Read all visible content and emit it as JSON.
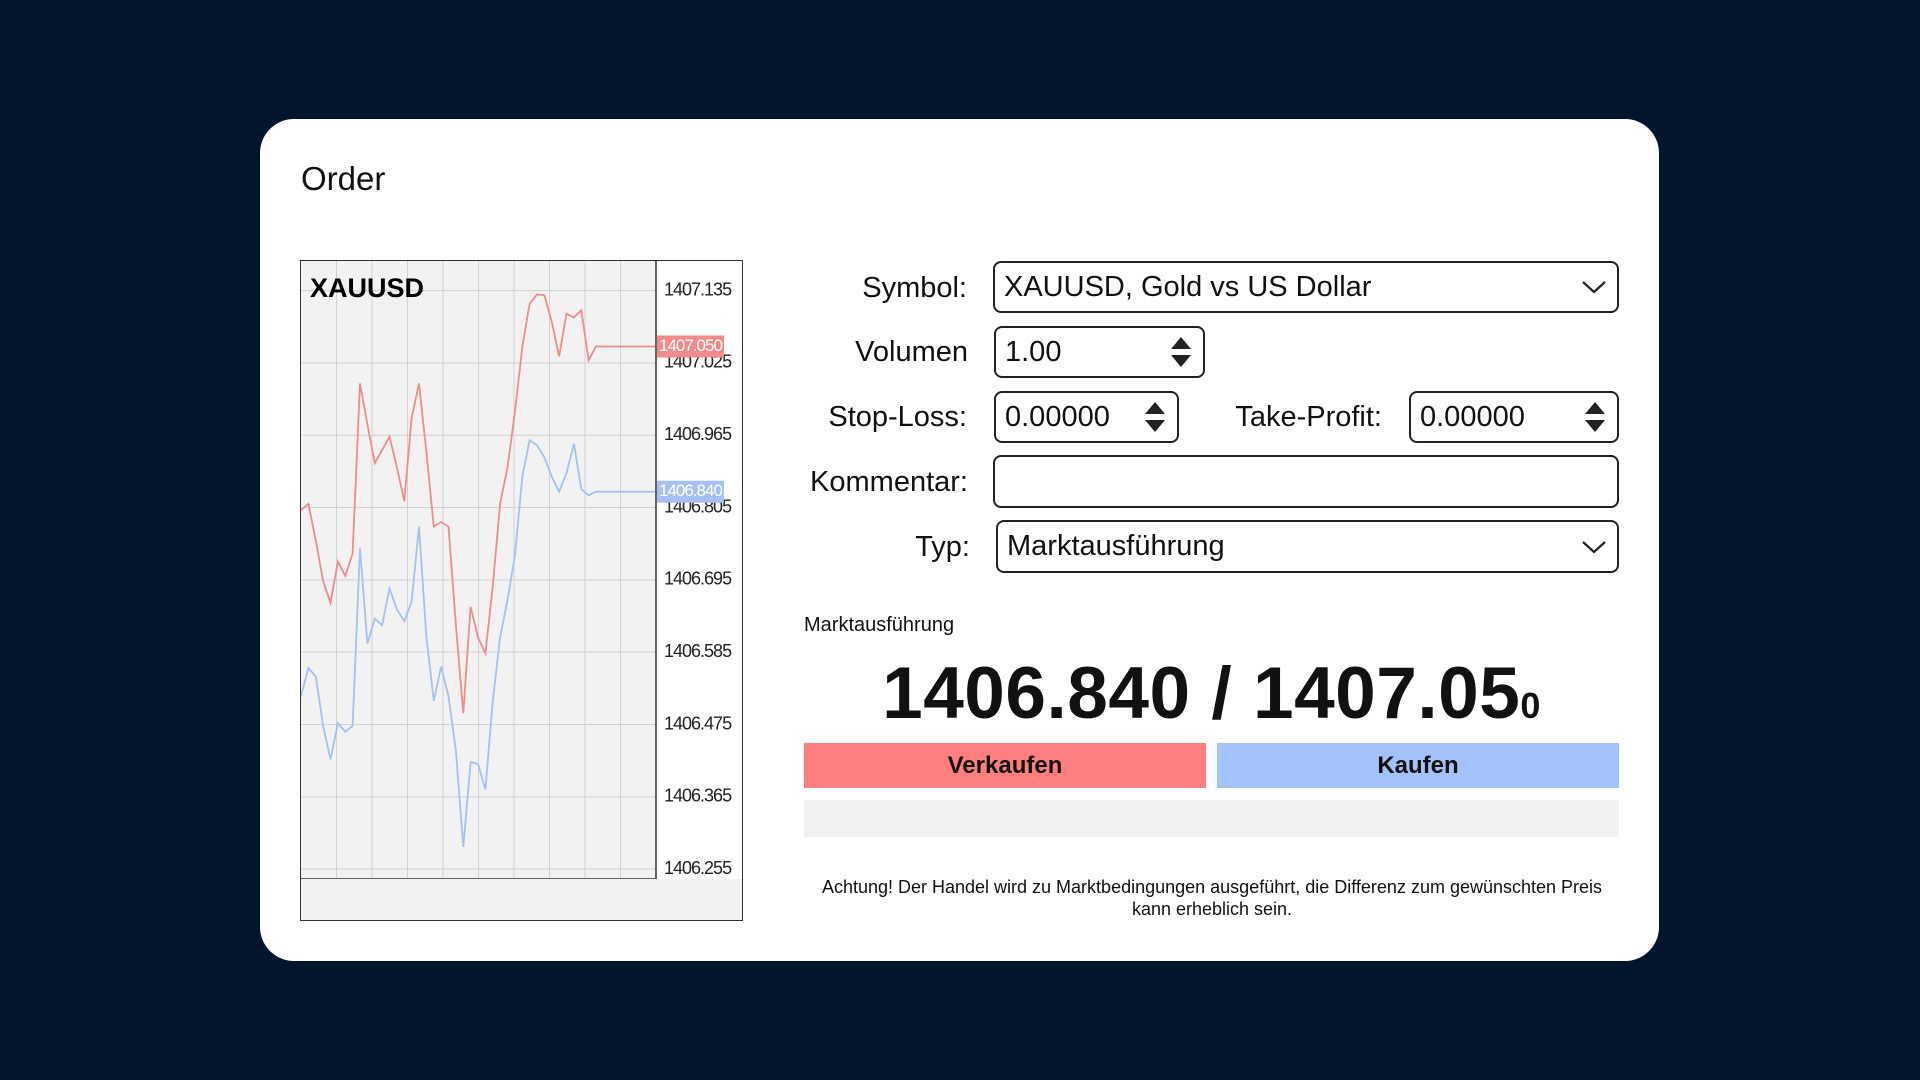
{
  "title": "Order",
  "chart_data": {
    "type": "line",
    "title": "XAUUSD",
    "ylim": [
      1406.24,
      1407.18
    ],
    "yticks": [
      1406.255,
      1406.365,
      1406.475,
      1406.585,
      1406.695,
      1406.805,
      1406.965,
      1407.025,
      1407.135
    ],
    "grid": true,
    "series": [
      {
        "color": "#f28b8b",
        "values": [
          1406.801,
          1406.813,
          1406.755,
          1406.693,
          1406.66,
          1406.723,
          1406.701,
          1406.735,
          1407.008,
          1406.974,
          1406.903,
          1406.932,
          1406.962,
          1406.894,
          1406.819,
          1406.979,
          1407.008,
          1406.927,
          1406.776,
          1406.783,
          1406.776,
          1406.626,
          1406.492,
          1406.654,
          1406.608,
          1406.583,
          1406.686,
          1406.813,
          1406.894,
          1406.984,
          1407.049,
          1407.115,
          1407.129,
          1407.128,
          1407.087,
          1407.035,
          1407.1,
          1407.094,
          1407.105,
          1407.029,
          1407.05,
          1407.05,
          1407.05,
          1407.05,
          1407.05,
          1407.05,
          1407.05,
          1407.05,
          1407.05
        ],
        "value_labels": [
          null,
          null,
          null,
          null,
          null,
          null,
          null,
          null,
          null,
          null,
          null,
          null,
          null,
          null,
          null,
          null,
          null,
          null,
          null,
          null,
          null,
          null,
          null,
          null,
          null,
          null,
          null,
          null,
          null,
          null,
          null,
          null,
          null,
          null,
          null,
          null,
          null,
          null,
          null,
          null,
          null,
          null,
          null,
          null,
          null,
          null,
          null,
          null,
          "1407.050"
        ]
      },
      {
        "color": "#a6bff5",
        "values": [
          1406.518,
          1406.561,
          1406.548,
          1406.473,
          1406.422,
          1406.477,
          1406.464,
          1406.473,
          1406.743,
          1406.598,
          1406.636,
          1406.626,
          1406.682,
          1406.65,
          1406.632,
          1406.662,
          1406.776,
          1406.608,
          1406.511,
          1406.563,
          1406.518,
          1406.435,
          1406.289,
          1406.418,
          1406.415,
          1406.376,
          1406.511,
          1406.608,
          1406.664,
          1406.732,
          1406.873,
          1406.954,
          1406.943,
          1406.916,
          1406.873,
          1406.84,
          1406.881,
          1406.946,
          1406.846,
          1406.832,
          1406.84,
          1406.84,
          1406.84,
          1406.84,
          1406.84,
          1406.84,
          1406.84,
          1406.84,
          1406.84
        ],
        "value_labels": [
          null,
          null,
          null,
          null,
          null,
          null,
          null,
          null,
          null,
          null,
          null,
          null,
          null,
          null,
          null,
          null,
          null,
          null,
          null,
          null,
          null,
          null,
          null,
          null,
          null,
          null,
          null,
          null,
          null,
          null,
          null,
          null,
          null,
          null,
          null,
          null,
          null,
          null,
          null,
          null,
          null,
          null,
          null,
          null,
          null,
          null,
          null,
          null,
          "1406.840"
        ]
      }
    ]
  },
  "form": {
    "symbol_label": "Symbol:",
    "symbol_value": "XAUUSD, Gold vs US Dollar",
    "volume_label": "Volumen",
    "volume_value": "1.00",
    "stop_loss_label": "Stop-Loss:",
    "stop_loss_value": "0.00000",
    "take_profit_label": "Take-Profit:",
    "take_profit_value": "0.00000",
    "comment_label": "Kommentar:",
    "type_label": "Typ:",
    "type_value": "Marktausführung"
  },
  "execution": {
    "section_title": "Marktausführung",
    "bid": "1406.840",
    "separator": "/",
    "ask": "1407.05",
    "ask_pip": "0",
    "sell": "Verkaufen",
    "buy": "Kaufen",
    "warning": "Achtung! Der Handel wird zu Marktbedingungen ausgeführt, die Differenz zum gewünschten Preis kann erheblich sein."
  }
}
